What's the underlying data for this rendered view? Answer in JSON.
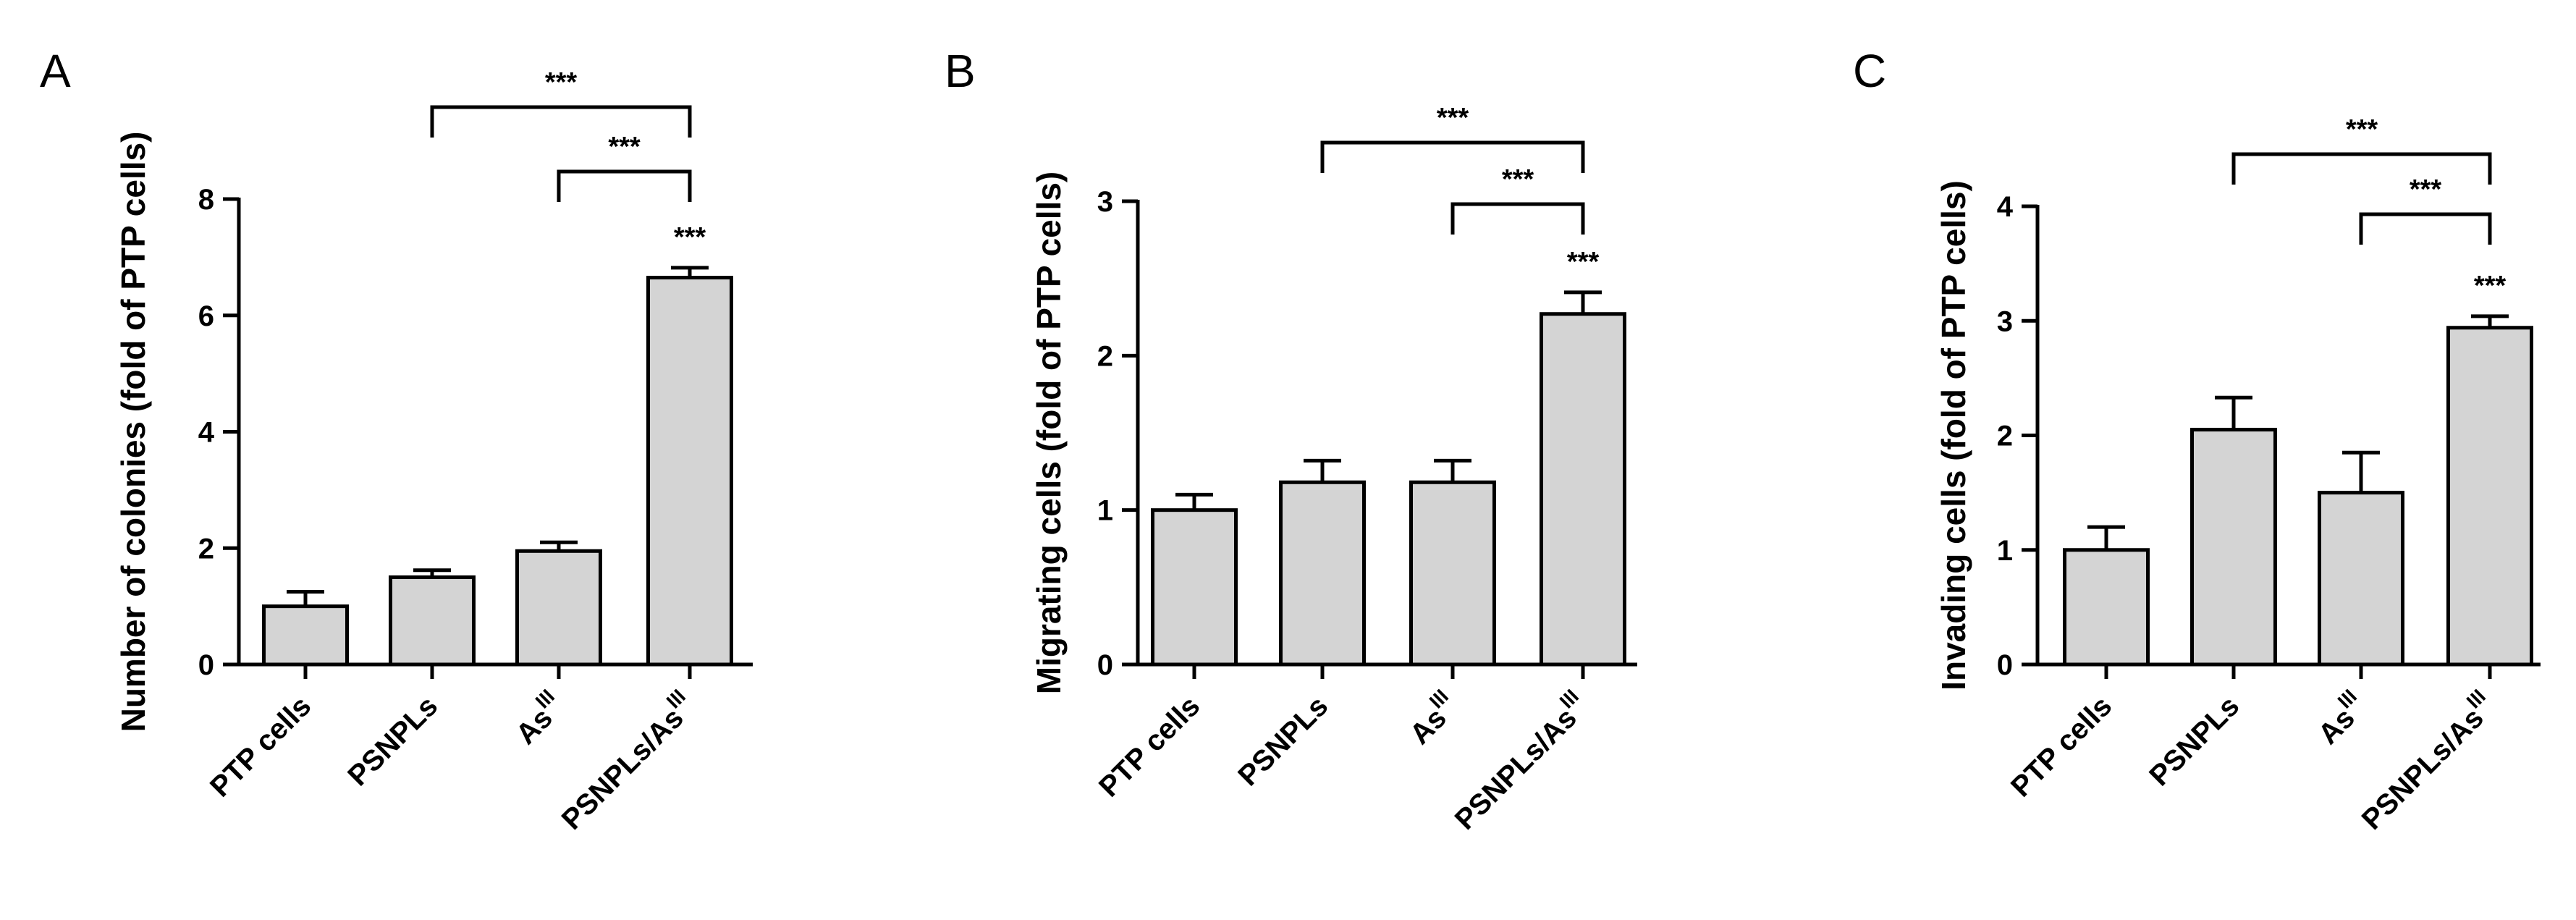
{
  "chart_data": [
    {
      "panel": "A",
      "type": "bar",
      "ylabel": "Number of colonies (fold of PTP cells)",
      "categories": [
        "PTP cells",
        "PSNPLs",
        "As",
        "PSNPLs/As"
      ],
      "category_superscripts": [
        "",
        "",
        "III",
        "III"
      ],
      "values": [
        1.0,
        1.5,
        1.95,
        6.65
      ],
      "errors": [
        0.25,
        0.12,
        0.15,
        0.17
      ],
      "ylim": [
        0,
        8
      ],
      "yticks": [
        0,
        2,
        4,
        6,
        8
      ],
      "bar_annotations": [
        "",
        "",
        "",
        "***"
      ],
      "comparisons": [
        {
          "from": 2,
          "to": 3,
          "label": "***"
        },
        {
          "from": 1,
          "to": 3,
          "label": "***"
        }
      ]
    },
    {
      "panel": "B",
      "type": "bar",
      "ylabel": "Migrating cells (fold of PTP cells)",
      "categories": [
        "PTP cells",
        "PSNPLs",
        "As",
        "PSNPLs/As"
      ],
      "category_superscripts": [
        "",
        "",
        "III",
        "III"
      ],
      "values": [
        1.0,
        1.18,
        1.18,
        2.27
      ],
      "errors": [
        0.1,
        0.14,
        0.14,
        0.14
      ],
      "ylim": [
        0,
        3
      ],
      "yticks": [
        0,
        1,
        2,
        3
      ],
      "bar_annotations": [
        "",
        "",
        "",
        "***"
      ],
      "comparisons": [
        {
          "from": 2,
          "to": 3,
          "label": "***"
        },
        {
          "from": 1,
          "to": 3,
          "label": "***"
        }
      ]
    },
    {
      "panel": "C",
      "type": "bar",
      "ylabel": "Invading cells (fold of PTP cells)",
      "categories": [
        "PTP cells",
        "PSNPLs",
        "As",
        "PSNPLs/As"
      ],
      "category_superscripts": [
        "",
        "",
        "III",
        "III"
      ],
      "values": [
        1.0,
        2.05,
        1.5,
        2.94
      ],
      "errors": [
        0.2,
        0.28,
        0.35,
        0.1
      ],
      "ylim": [
        0,
        4
      ],
      "yticks": [
        0,
        1,
        2,
        3,
        4
      ],
      "bar_annotations": [
        "",
        "",
        "",
        "***"
      ],
      "comparisons": [
        {
          "from": 2,
          "to": 3,
          "label": "***"
        },
        {
          "from": 1,
          "to": 3,
          "label": "***"
        }
      ]
    }
  ]
}
